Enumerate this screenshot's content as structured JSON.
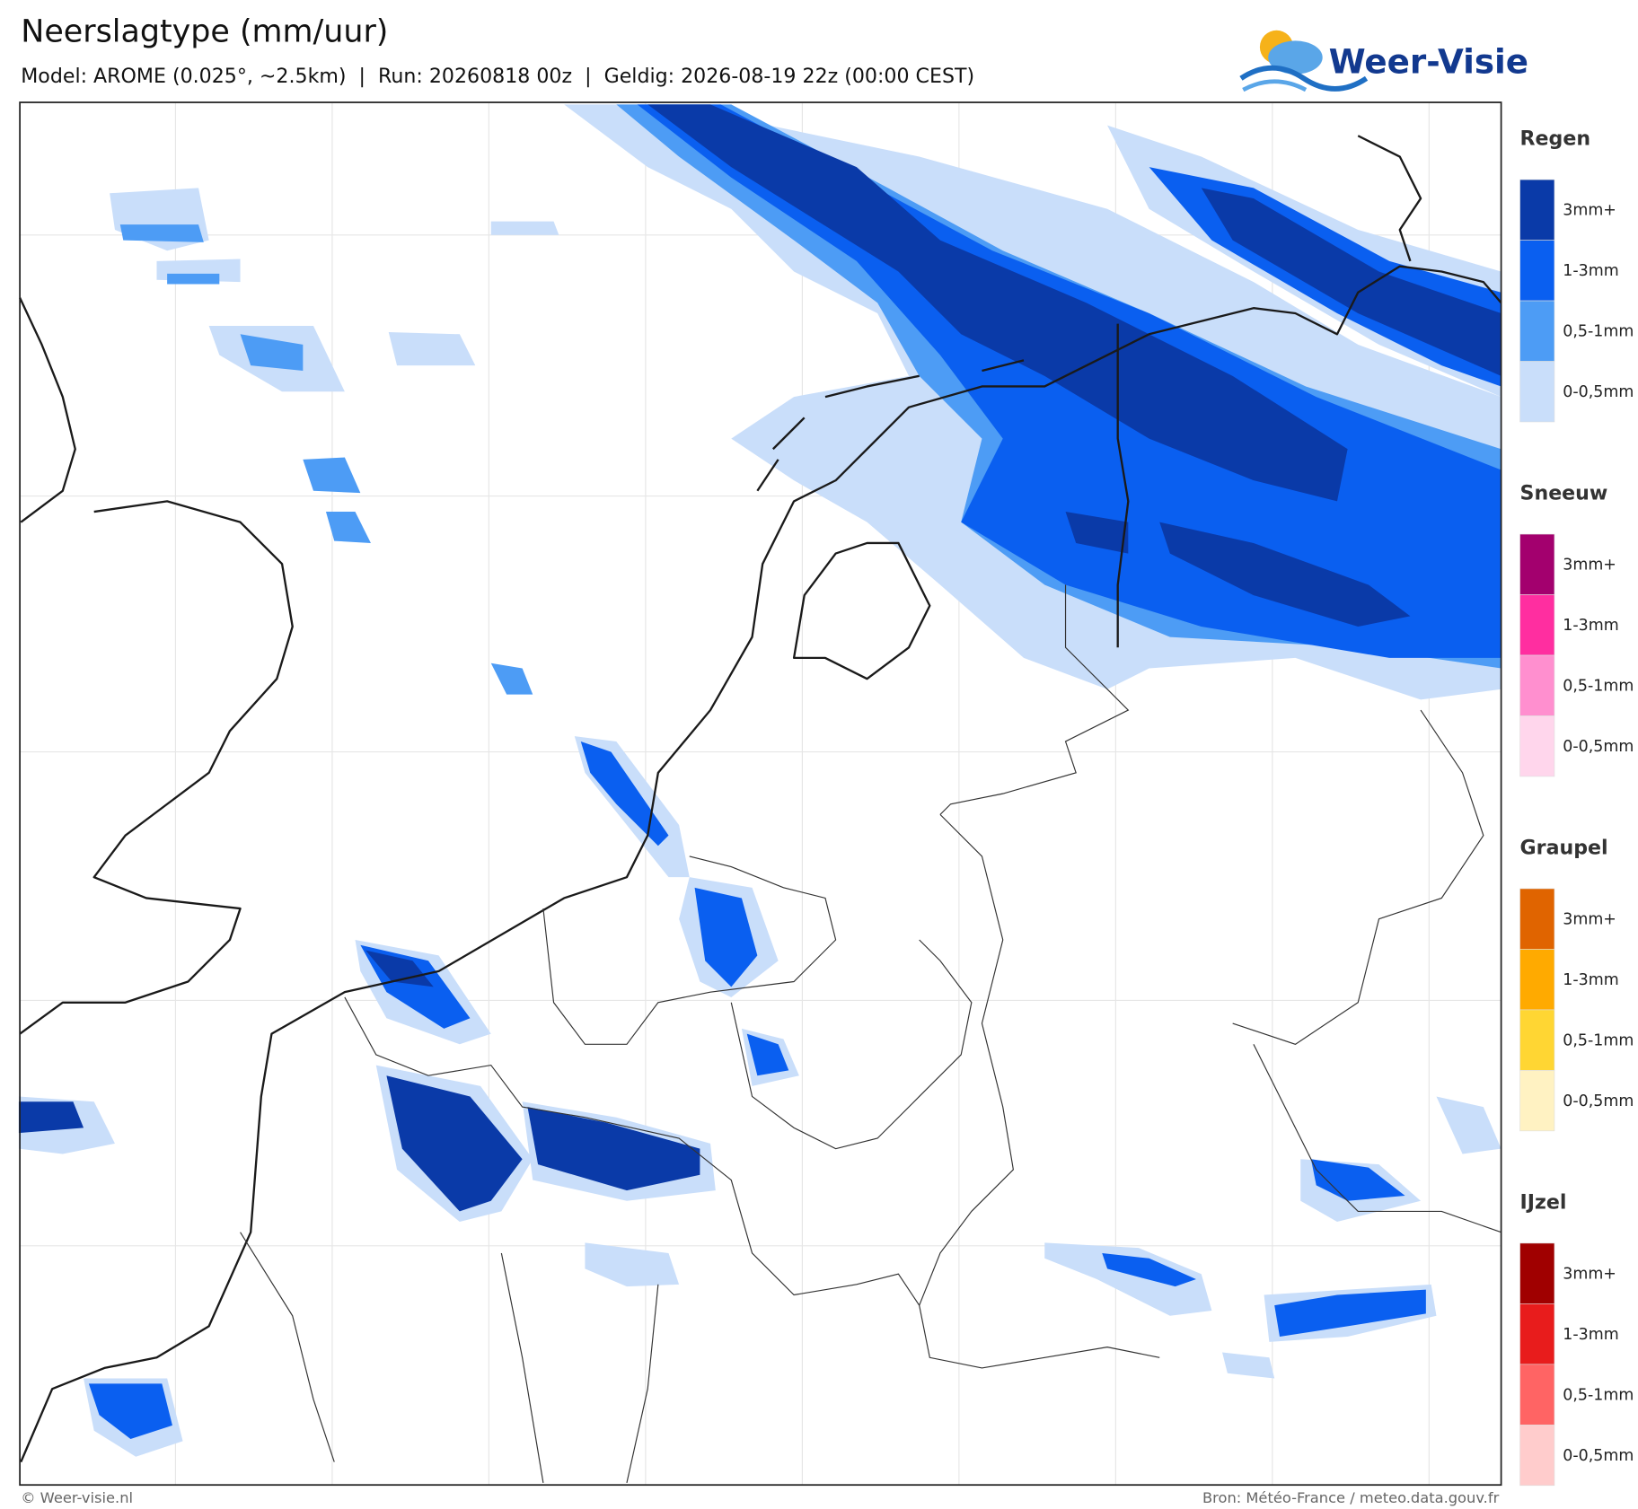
{
  "header": {
    "title": "Neerslagtype (mm/uur)",
    "subtitle": "Model: AROME (0.025°, ~2.5km)  |  Run: 20260818 00z  |  Geldig: 2026-08-19 22z (00:00 CEST)"
  },
  "logo": {
    "text": "Weer-Visie"
  },
  "legend": {
    "groups": [
      {
        "title": "Regen",
        "items": [
          {
            "label": "3mm+",
            "color": "#0a3aa8"
          },
          {
            "label": "1-3mm",
            "color": "#0a5ff0"
          },
          {
            "label": "0,5-1mm",
            "color": "#4d9cf5"
          },
          {
            "label": "0-0,5mm",
            "color": "#c9defa"
          }
        ]
      },
      {
        "title": "Sneeuw",
        "items": [
          {
            "label": "3mm+",
            "color": "#a3006e"
          },
          {
            "label": "1-3mm",
            "color": "#ff2ea0"
          },
          {
            "label": "0,5-1mm",
            "color": "#ff8fcf"
          },
          {
            "label": "0-0,5mm",
            "color": "#ffd6ec"
          }
        ]
      },
      {
        "title": "Graupel",
        "items": [
          {
            "label": "3mm+",
            "color": "#e06400"
          },
          {
            "label": "1-3mm",
            "color": "#ffaa00"
          },
          {
            "label": "0,5-1mm",
            "color": "#ffd633"
          },
          {
            "label": "0-0,5mm",
            "color": "#fff2c2"
          }
        ]
      },
      {
        "title": "IJzel",
        "items": [
          {
            "label": "3mm+",
            "color": "#a00000"
          },
          {
            "label": "1-3mm",
            "color": "#e81c1c"
          },
          {
            "label": "0,5-1mm",
            "color": "#ff6464"
          },
          {
            "label": "0-0,5mm",
            "color": "#ffcccc"
          }
        ]
      }
    ]
  },
  "footer": {
    "left": "© Weer-visie.nl",
    "right": "Bron: Météo-France / meteo.data.gouv.fr"
  }
}
